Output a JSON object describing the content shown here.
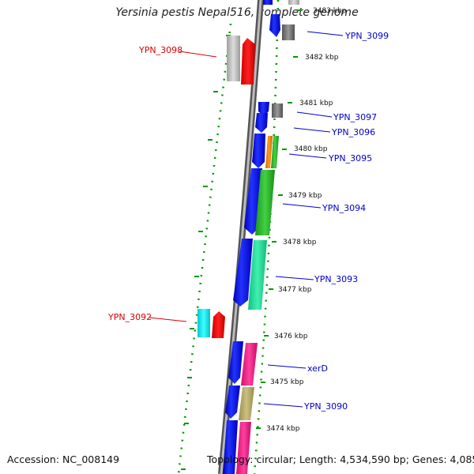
{
  "title": "Yersinia pestis Nepal516, complete genome",
  "footer": {
    "accession": "Accession: NC_008149",
    "topology": "Topology: circular; Length: 4,534,590 bp; Genes: 4,085"
  },
  "colors": {
    "forward_label": "#0000cc",
    "reverse_label": "#dd0000",
    "backbone": "#888888",
    "tick": "#009900"
  },
  "kbp_labels": [
    "3483 kbp",
    "3482 kbp",
    "3481 kbp",
    "3480 kbp",
    "3479 kbp",
    "3478 kbp",
    "3477 kbp",
    "3476 kbp",
    "3475 kbp",
    "3474 kbp"
  ],
  "gene_labels": [
    {
      "text": "YPN_3099",
      "strand": "forward"
    },
    {
      "text": "YPN_3098",
      "strand": "reverse"
    },
    {
      "text": "YPN_3097",
      "strand": "forward"
    },
    {
      "text": "YPN_3096",
      "strand": "forward"
    },
    {
      "text": "YPN_3095",
      "strand": "forward"
    },
    {
      "text": "YPN_3094",
      "strand": "forward"
    },
    {
      "text": "YPN_3093",
      "strand": "forward"
    },
    {
      "text": "YPN_3092",
      "strand": "reverse"
    },
    {
      "text": "xerD",
      "strand": "forward"
    },
    {
      "text": "YPN_3090",
      "strand": "forward"
    }
  ]
}
